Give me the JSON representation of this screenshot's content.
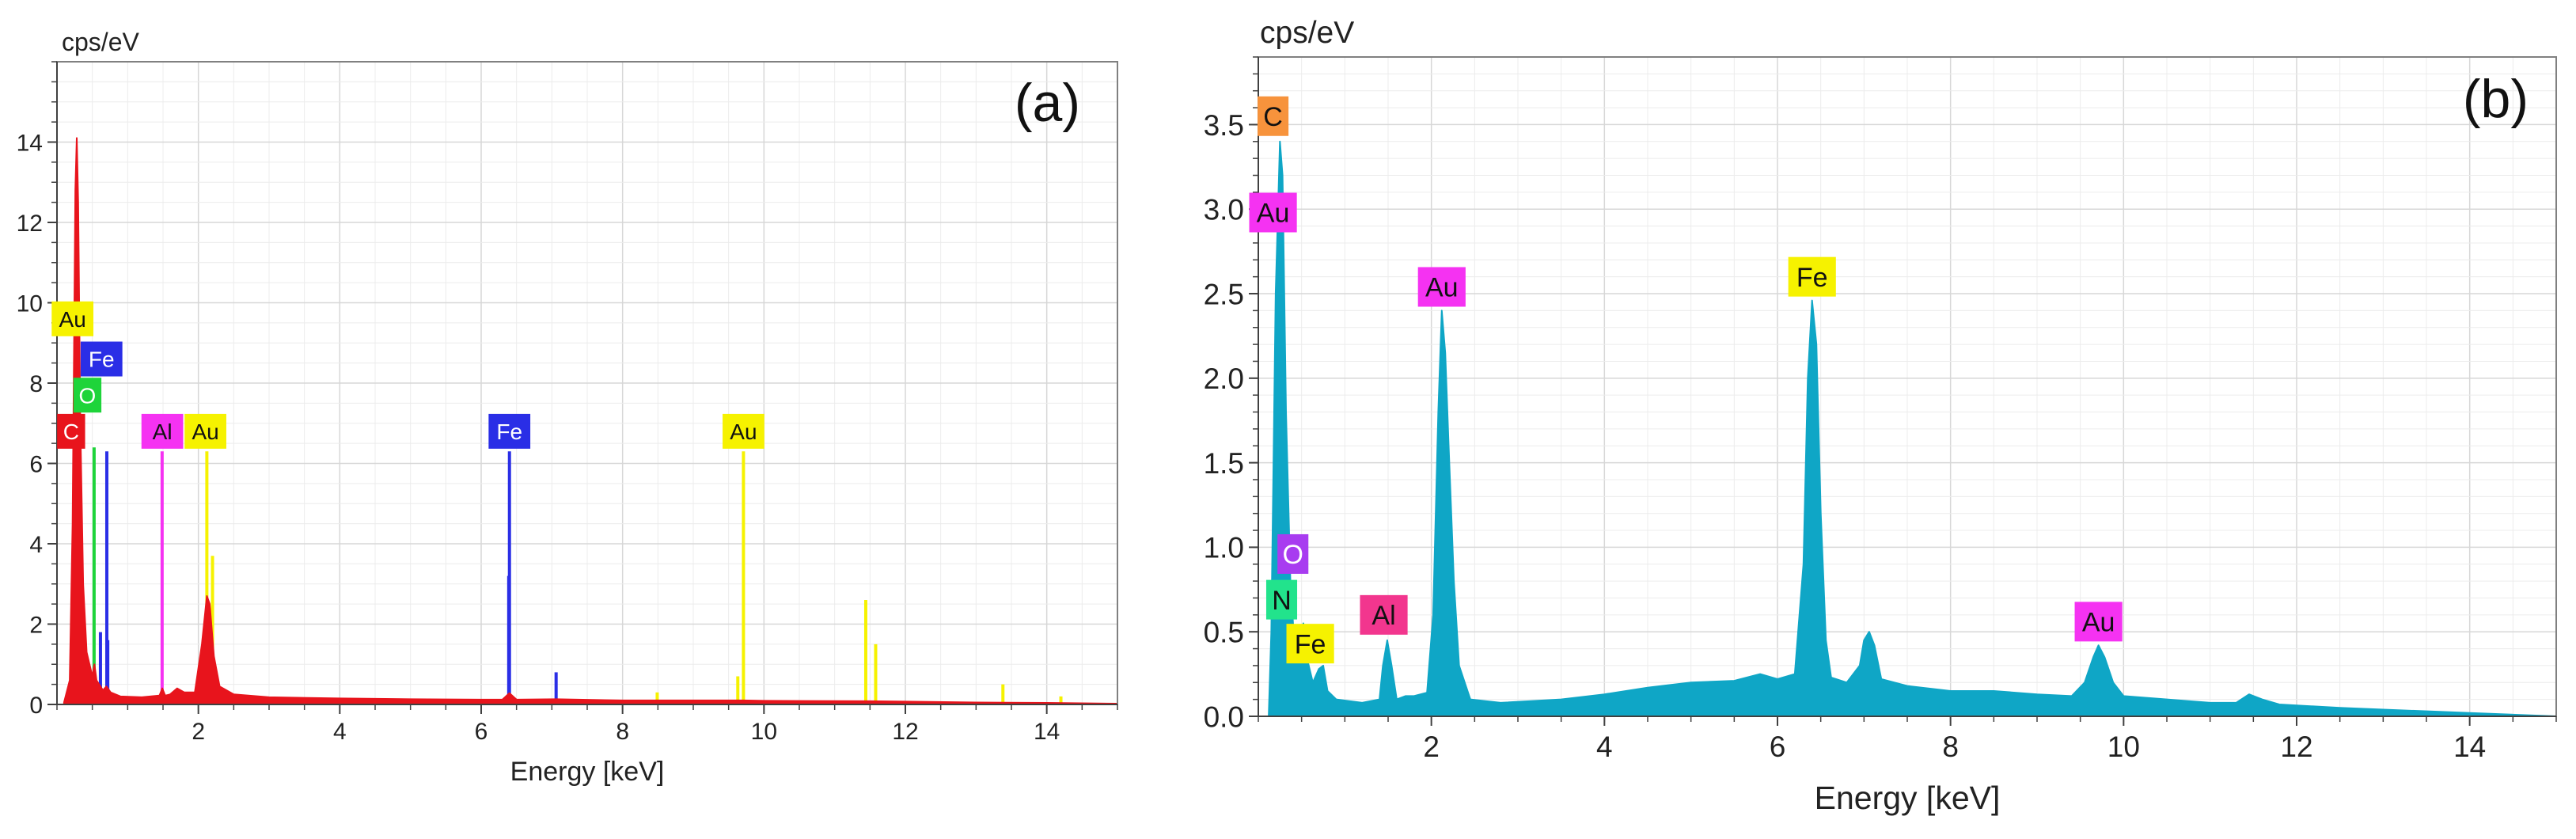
{
  "colors": {
    "red": "#e8141c",
    "green": "#1ed43a",
    "blue": "#2a2ee6",
    "magenta": "#f532f2",
    "yellow": "#f6f200",
    "cyan": "#0fa6c6",
    "orange": "#f7933c",
    "purple": "#a83cf0",
    "mint": "#22e38c",
    "pink": "#f2368e"
  },
  "chart_data": [
    {
      "panel_label": "(a)",
      "type": "line",
      "title": "",
      "ylabel": "cps/eV",
      "xlabel": "Energy [keV]",
      "xlim": [
        0.0,
        15.0
      ],
      "ylim": [
        0,
        16
      ],
      "xticks": [
        2,
        4,
        6,
        8,
        10,
        12,
        14
      ],
      "yticks": [
        0,
        2,
        4,
        6,
        8,
        10,
        12,
        14
      ],
      "grid": true,
      "series": [
        {
          "name": "spectrum",
          "color": "red",
          "points": [
            [
              0.1,
              0.05
            ],
            [
              0.18,
              0.6
            ],
            [
              0.22,
              4.5
            ],
            [
              0.26,
              12.8
            ],
            [
              0.28,
              14.1
            ],
            [
              0.3,
              12.5
            ],
            [
              0.33,
              7.0
            ],
            [
              0.37,
              3.0
            ],
            [
              0.42,
              1.3
            ],
            [
              0.5,
              0.7
            ],
            [
              0.53,
              1.0
            ],
            [
              0.56,
              0.6
            ],
            [
              0.65,
              0.35
            ],
            [
              0.7,
              0.45
            ],
            [
              0.76,
              0.3
            ],
            [
              0.9,
              0.2
            ],
            [
              1.2,
              0.18
            ],
            [
              1.45,
              0.22
            ],
            [
              1.49,
              0.4
            ],
            [
              1.53,
              0.22
            ],
            [
              1.6,
              0.25
            ],
            [
              1.7,
              0.4
            ],
            [
              1.8,
              0.3
            ],
            [
              1.95,
              0.3
            ],
            [
              2.05,
              1.5
            ],
            [
              2.12,
              2.7
            ],
            [
              2.16,
              2.5
            ],
            [
              2.22,
              1.2
            ],
            [
              2.3,
              0.45
            ],
            [
              2.5,
              0.25
            ],
            [
              3.0,
              0.18
            ],
            [
              4.0,
              0.15
            ],
            [
              5.0,
              0.13
            ],
            [
              6.0,
              0.12
            ],
            [
              6.3,
              0.12
            ],
            [
              6.4,
              0.28
            ],
            [
              6.5,
              0.12
            ],
            [
              7.06,
              0.13
            ],
            [
              8.0,
              0.1
            ],
            [
              9.7,
              0.1
            ],
            [
              10.0,
              0.09
            ],
            [
              11.5,
              0.08
            ],
            [
              12.0,
              0.07
            ],
            [
              13.0,
              0.05
            ],
            [
              14.0,
              0.04
            ],
            [
              15.0,
              0.02
            ]
          ]
        }
      ],
      "peak_lines": [
        {
          "element": "C",
          "energy": 0.277,
          "height": 7.0,
          "color": "red"
        },
        {
          "element": "O",
          "energy": 0.525,
          "height": 6.4,
          "color": "green"
        },
        {
          "element": "Fe",
          "energy": 0.705,
          "height": 6.3,
          "color": "blue"
        },
        {
          "element": "Fe",
          "energy": 0.718,
          "height": 1.6,
          "color": "blue"
        },
        {
          "element": "Fe",
          "energy": 0.615,
          "height": 1.8,
          "color": "blue"
        },
        {
          "element": "Al",
          "energy": 1.487,
          "height": 6.3,
          "color": "magenta"
        },
        {
          "element": "Au",
          "energy": 2.12,
          "height": 6.3,
          "color": "yellow"
        },
        {
          "element": "Au",
          "energy": 2.2,
          "height": 3.7,
          "color": "yellow"
        },
        {
          "element": "Fe",
          "energy": 6.4,
          "height": 6.3,
          "color": "blue"
        },
        {
          "element": "Fe",
          "energy": 6.39,
          "height": 3.2,
          "color": "blue"
        },
        {
          "element": "Fe",
          "energy": 7.06,
          "height": 0.8,
          "color": "blue"
        },
        {
          "element": "Au",
          "energy": 9.71,
          "height": 6.3,
          "color": "yellow"
        },
        {
          "element": "Au",
          "energy": 9.63,
          "height": 0.7,
          "color": "yellow"
        },
        {
          "element": "Au",
          "energy": 8.49,
          "height": 0.3,
          "color": "yellow"
        },
        {
          "element": "Au",
          "energy": 11.44,
          "height": 2.6,
          "color": "yellow"
        },
        {
          "element": "Au",
          "energy": 11.58,
          "height": 1.5,
          "color": "yellow"
        },
        {
          "element": "Au",
          "energy": 13.38,
          "height": 0.5,
          "color": "yellow"
        },
        {
          "element": "Au",
          "energy": 14.2,
          "height": 0.2,
          "color": "yellow"
        }
      ],
      "labels": [
        {
          "text": "Au",
          "energy": 0.22,
          "y": 9.6,
          "color": "yellow"
        },
        {
          "text": "Fe",
          "energy": 0.63,
          "y": 8.6,
          "color": "blue"
        },
        {
          "text": "O",
          "energy": 0.43,
          "y": 7.7,
          "color": "green"
        },
        {
          "text": "C",
          "energy": 0.2,
          "y": 6.8,
          "color": "red"
        },
        {
          "text": "Al",
          "energy": 1.49,
          "y": 6.8,
          "color": "magenta"
        },
        {
          "text": "Au",
          "energy": 2.1,
          "y": 6.8,
          "color": "yellow"
        },
        {
          "text": "Fe",
          "energy": 6.4,
          "y": 6.8,
          "color": "blue"
        },
        {
          "text": "Au",
          "energy": 9.71,
          "y": 6.8,
          "color": "yellow"
        }
      ]
    },
    {
      "panel_label": "(b)",
      "type": "area",
      "title": "",
      "ylabel": "cps/eV",
      "xlabel": "Energy [keV]",
      "xlim": [
        0.0,
        15.0
      ],
      "ylim": [
        0.0,
        3.9
      ],
      "xticks": [
        2,
        4,
        6,
        8,
        10,
        12,
        14
      ],
      "yticks": [
        0.0,
        0.5,
        1.0,
        1.5,
        2.0,
        2.5,
        3.0,
        3.5
      ],
      "grid": true,
      "series": [
        {
          "name": "spectrum",
          "color": "cyan",
          "points": [
            [
              0.12,
              0.0
            ],
            [
              0.15,
              0.5
            ],
            [
              0.2,
              2.5
            ],
            [
              0.25,
              3.4
            ],
            [
              0.28,
              3.2
            ],
            [
              0.32,
              1.8
            ],
            [
              0.37,
              0.8
            ],
            [
              0.42,
              0.4
            ],
            [
              0.48,
              0.3
            ],
            [
              0.52,
              0.55
            ],
            [
              0.56,
              0.35
            ],
            [
              0.63,
              0.2
            ],
            [
              0.7,
              0.28
            ],
            [
              0.75,
              0.3
            ],
            [
              0.8,
              0.15
            ],
            [
              0.9,
              0.1
            ],
            [
              1.2,
              0.08
            ],
            [
              1.4,
              0.1
            ],
            [
              1.44,
              0.3
            ],
            [
              1.49,
              0.45
            ],
            [
              1.54,
              0.3
            ],
            [
              1.6,
              0.1
            ],
            [
              1.7,
              0.12
            ],
            [
              1.8,
              0.12
            ],
            [
              1.95,
              0.14
            ],
            [
              2.02,
              0.6
            ],
            [
              2.08,
              1.8
            ],
            [
              2.12,
              2.4
            ],
            [
              2.16,
              2.15
            ],
            [
              2.2,
              1.6
            ],
            [
              2.26,
              0.8
            ],
            [
              2.32,
              0.3
            ],
            [
              2.45,
              0.1
            ],
            [
              2.8,
              0.08
            ],
            [
              3.5,
              0.1
            ],
            [
              4.0,
              0.13
            ],
            [
              4.5,
              0.17
            ],
            [
              5.0,
              0.2
            ],
            [
              5.5,
              0.21
            ],
            [
              5.8,
              0.25
            ],
            [
              6.0,
              0.22
            ],
            [
              6.2,
              0.25
            ],
            [
              6.3,
              0.9
            ],
            [
              6.35,
              2.0
            ],
            [
              6.4,
              2.46
            ],
            [
              6.45,
              2.2
            ],
            [
              6.5,
              1.2
            ],
            [
              6.56,
              0.45
            ],
            [
              6.62,
              0.23
            ],
            [
              6.8,
              0.2
            ],
            [
              6.95,
              0.3
            ],
            [
              7.0,
              0.45
            ],
            [
              7.06,
              0.5
            ],
            [
              7.12,
              0.42
            ],
            [
              7.2,
              0.22
            ],
            [
              7.5,
              0.18
            ],
            [
              8.0,
              0.15
            ],
            [
              8.5,
              0.15
            ],
            [
              9.0,
              0.13
            ],
            [
              9.4,
              0.12
            ],
            [
              9.55,
              0.2
            ],
            [
              9.65,
              0.35
            ],
            [
              9.71,
              0.42
            ],
            [
              9.78,
              0.35
            ],
            [
              9.88,
              0.2
            ],
            [
              10.0,
              0.12
            ],
            [
              10.5,
              0.1
            ],
            [
              11.0,
              0.08
            ],
            [
              11.3,
              0.08
            ],
            [
              11.45,
              0.13
            ],
            [
              11.6,
              0.1
            ],
            [
              11.8,
              0.07
            ],
            [
              12.5,
              0.05
            ],
            [
              13.0,
              0.04
            ],
            [
              14.0,
              0.02
            ],
            [
              15.0,
              0.0
            ]
          ]
        }
      ],
      "labels": [
        {
          "text": "C",
          "energy": 0.17,
          "y": 3.55,
          "color": "orange"
        },
        {
          "text": "Au",
          "energy": 0.17,
          "y": 2.98,
          "color": "magenta"
        },
        {
          "text": "Au",
          "energy": 2.12,
          "y": 2.54,
          "color": "magenta"
        },
        {
          "text": "Fe",
          "energy": 6.4,
          "y": 2.6,
          "color": "yellow"
        },
        {
          "text": "O",
          "energy": 0.4,
          "y": 0.96,
          "color": "purple"
        },
        {
          "text": "N",
          "energy": 0.27,
          "y": 0.69,
          "color": "mint"
        },
        {
          "text": "Fe",
          "energy": 0.6,
          "y": 0.43,
          "color": "yellow"
        },
        {
          "text": "Al",
          "energy": 1.45,
          "y": 0.6,
          "color": "pink"
        },
        {
          "text": "Au",
          "energy": 9.71,
          "y": 0.56,
          "color": "magenta"
        }
      ]
    }
  ]
}
